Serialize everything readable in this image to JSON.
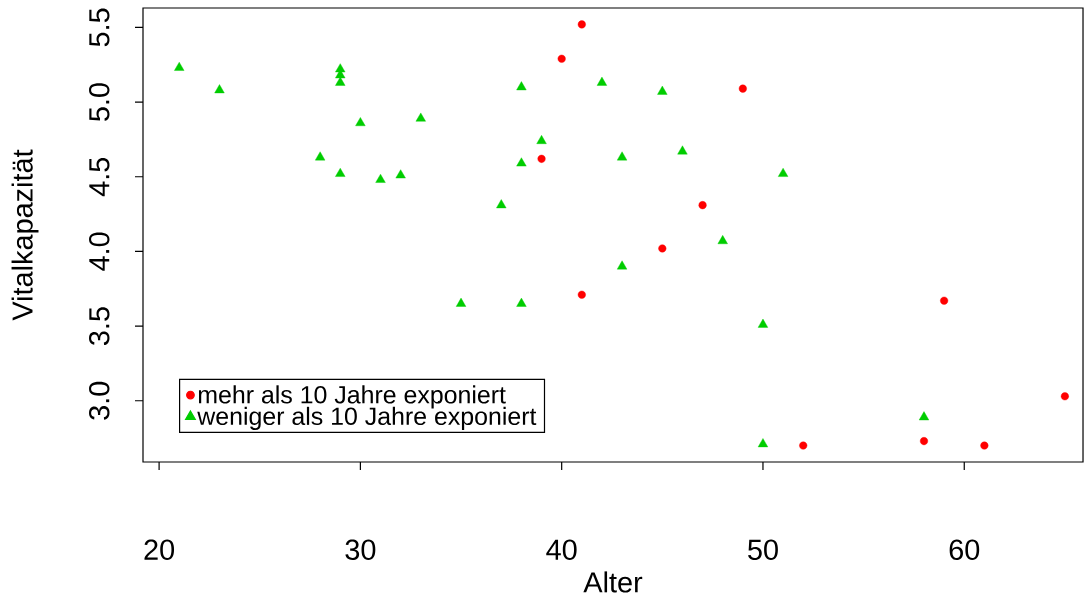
{
  "chart_data": {
    "type": "scatter",
    "xlabel": "Alter",
    "ylabel": "Vitalkapazität",
    "xlim": [
      19.2,
      65.9
    ],
    "ylim": [
      2.59,
      5.63
    ],
    "xticks": [
      20,
      30,
      40,
      50,
      60
    ],
    "yticks": [
      {
        "value": 3,
        "label": "3.0"
      },
      {
        "value": 3.5,
        "label": "3.5"
      },
      {
        "value": 4,
        "label": "4.0"
      },
      {
        "value": 4.5,
        "label": "4.5"
      },
      {
        "value": 5,
        "label": "5.0"
      },
      {
        "value": 5.5,
        "label": "5.5"
      }
    ],
    "legend": "bottom left",
    "series": [
      {
        "name": "mehr als 10 Jahre exponiert",
        "color": "#ff0000",
        "marker": "circle",
        "x": [
          41,
          40,
          49,
          39,
          47,
          45,
          41,
          59,
          65,
          58,
          52,
          61
        ],
        "values": [
          5.52,
          5.29,
          5.09,
          4.62,
          4.31,
          4.02,
          3.71,
          3.67,
          3.03,
          2.73,
          2.7,
          2.7
        ]
      },
      {
        "name": "weniger als 10 Jahre exponiert",
        "color": "#00cd00",
        "marker": "triangle",
        "x": [
          21,
          23,
          29,
          29,
          29,
          30,
          33,
          28,
          29,
          31,
          32,
          38,
          38,
          39,
          37,
          35,
          38,
          42,
          45,
          43,
          46,
          51,
          48,
          43,
          50,
          58,
          50
        ],
        "values": [
          5.23,
          5.08,
          5.22,
          5.18,
          5.13,
          4.86,
          4.89,
          4.63,
          4.52,
          4.48,
          4.51,
          5.1,
          4.59,
          4.74,
          4.31,
          3.65,
          3.65,
          5.13,
          5.07,
          4.63,
          4.67,
          4.52,
          4.07,
          3.9,
          3.51,
          2.89,
          2.71
        ]
      }
    ]
  }
}
